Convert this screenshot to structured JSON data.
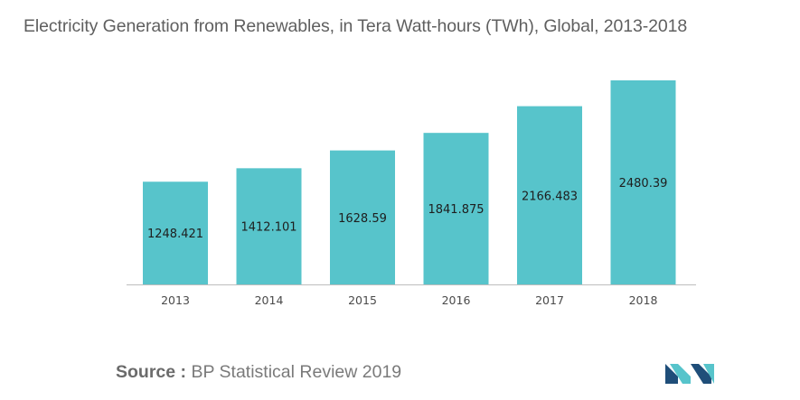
{
  "title": "Electricity Generation from Renewables, in Tera Watt-hours (TWh), Global, 2013-2018",
  "source": {
    "label": "Source :",
    "text": "BP Statistical Review 2019"
  },
  "colors": {
    "bar": "#57c4cb",
    "axis": "#bdbdbd",
    "logo_dark": "#1f4e79",
    "logo_light": "#57c4cb"
  },
  "logo": {
    "icon": "mordor-intelligence-logo-icon"
  },
  "chart_data": {
    "type": "bar",
    "categories": [
      "2013",
      "2014",
      "2015",
      "2016",
      "2017",
      "2018"
    ],
    "values": [
      1248.421,
      1412.101,
      1628.59,
      1841.875,
      2166.483,
      2480.39
    ],
    "value_labels": [
      "1248.421",
      "1412.101",
      "1628.59",
      "1841.875",
      "2166.483",
      "2480.39"
    ],
    "title": "Electricity Generation from Renewables, in Tera Watt-hours (TWh), Global, 2013-2018",
    "xlabel": "",
    "ylabel": "",
    "ylim": [
      0,
      2480.39
    ],
    "grid": false,
    "legend": "none"
  }
}
